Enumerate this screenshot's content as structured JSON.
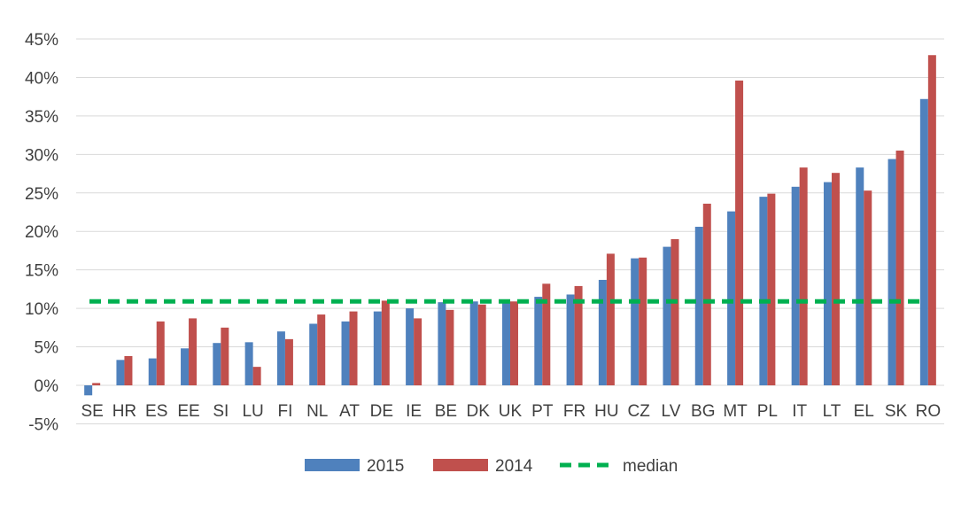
{
  "chart_data": {
    "type": "bar",
    "title": "",
    "xlabel": "",
    "ylabel": "",
    "ylim": [
      -5,
      45
    ],
    "yticks": [
      -5,
      0,
      5,
      10,
      15,
      20,
      25,
      30,
      35,
      40,
      45
    ],
    "ytick_labels": [
      "-5%",
      "0%",
      "5%",
      "10%",
      "15%",
      "20%",
      "25%",
      "30%",
      "35%",
      "40%",
      "45%"
    ],
    "grid": "horizontal",
    "legend_position": "bottom",
    "categories": [
      "SE",
      "HR",
      "ES",
      "EE",
      "SI",
      "LU",
      "FI",
      "NL",
      "AT",
      "DE",
      "IE",
      "BE",
      "DK",
      "UK",
      "PT",
      "FR",
      "HU",
      "CZ",
      "LV",
      "BG",
      "MT",
      "PL",
      "IT",
      "LT",
      "EL",
      "SK",
      "RO"
    ],
    "series": [
      {
        "name": "2015",
        "color": "#4f81bd",
        "values": [
          -1.3,
          3.3,
          3.5,
          4.8,
          5.5,
          5.6,
          7.0,
          8.0,
          8.3,
          9.6,
          10.0,
          10.8,
          10.9,
          11.0,
          11.5,
          11.8,
          13.7,
          16.5,
          18.0,
          20.6,
          22.6,
          24.5,
          25.8,
          26.4,
          28.3,
          29.4,
          37.2
        ]
      },
      {
        "name": "2014",
        "color": "#c0504d",
        "values": [
          0.3,
          3.8,
          8.3,
          8.7,
          7.5,
          2.4,
          6.0,
          9.2,
          9.6,
          11.0,
          8.7,
          9.8,
          10.5,
          10.9,
          13.2,
          12.9,
          17.1,
          16.6,
          19.0,
          23.6,
          39.6,
          24.9,
          28.3,
          27.6,
          25.3,
          30.5,
          42.9
        ]
      }
    ],
    "reference_lines": [
      {
        "name": "median",
        "value": 10.9,
        "color": "#00b050",
        "style": "dashed"
      }
    ]
  }
}
